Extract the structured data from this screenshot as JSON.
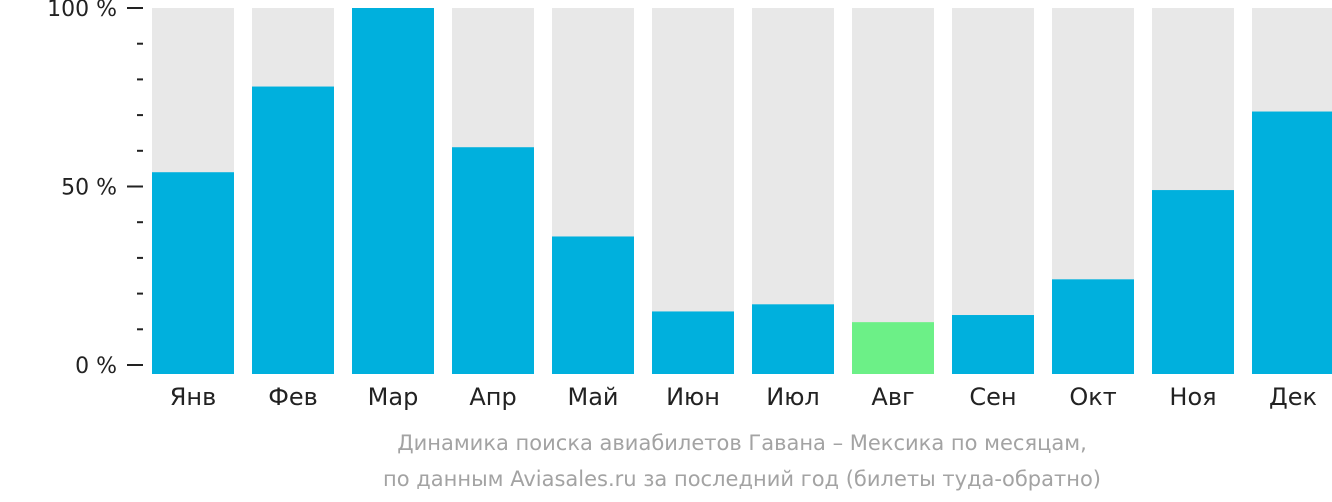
{
  "chart_data": {
    "type": "bar",
    "categories": [
      "Янв",
      "Фев",
      "Мар",
      "Апр",
      "Май",
      "Июн",
      "Июл",
      "Авг",
      "Сен",
      "Окт",
      "Ноя",
      "Дек"
    ],
    "values": [
      54,
      78,
      100,
      61,
      36,
      15,
      17,
      12,
      14,
      24,
      49,
      71
    ],
    "ylim": [
      0,
      100
    ],
    "yticks": [
      "0 %",
      "50 %",
      "100 %"
    ],
    "highlight_index": 7,
    "colors": {
      "bar": "#00b0dd",
      "highlight": "#6cf087",
      "track": "#e8e8e8",
      "axis": "#222222"
    },
    "caption_line1": "Динамика поиска авиабилетов Гавана – Мексика по месяцам,",
    "caption_line2": "по данным Aviasales.ru за последний год (билеты туда-обратно)"
  }
}
